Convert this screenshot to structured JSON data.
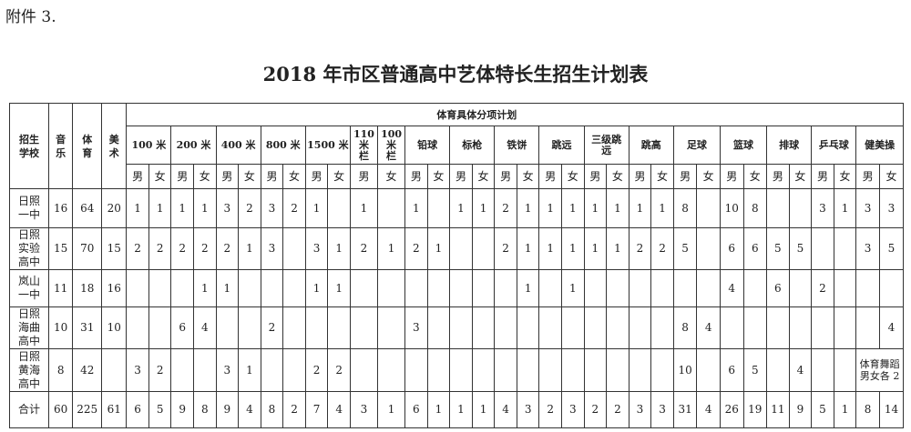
{
  "attachment": "附件 3.",
  "title": "2018 年市区普通高中艺体特长生招生计划表",
  "headers": {
    "school": "招生\n学校",
    "music": "音\n乐",
    "sports": "体\n育",
    "art": "美\n术",
    "group": "体育具体分项计划",
    "male": "男",
    "female": "女"
  },
  "events": [
    {
      "name": "100 米",
      "cols": 2
    },
    {
      "name": "200 米",
      "cols": 2
    },
    {
      "name": "400 米",
      "cols": 2
    },
    {
      "name": "800 米",
      "cols": 2
    },
    {
      "name": "1500 米",
      "cols": 2
    },
    {
      "name": "110\n米\n栏",
      "cols": 1,
      "sex": "男"
    },
    {
      "name": "100\n米\n栏",
      "cols": 1,
      "sex": "女"
    },
    {
      "name": "铅球",
      "cols": 2
    },
    {
      "name": "标枪",
      "cols": 2
    },
    {
      "name": "铁饼",
      "cols": 2
    },
    {
      "name": "跳远",
      "cols": 2
    },
    {
      "name": "三级跳\n远",
      "cols": 2
    },
    {
      "name": "跳高",
      "cols": 2
    },
    {
      "name": "足球",
      "cols": 2
    },
    {
      "name": "篮球",
      "cols": 2
    },
    {
      "name": "排球",
      "cols": 2
    },
    {
      "name": "乒乓球",
      "cols": 2
    },
    {
      "name": "健美操",
      "cols": 2
    }
  ],
  "rows": [
    {
      "school": "日照\n一中",
      "music": "16",
      "sports": "64",
      "art": "20",
      "cells": [
        "1",
        "1",
        "1",
        "1",
        "3",
        "2",
        "3",
        "2",
        "1",
        "",
        "1",
        "",
        "1",
        "",
        "1",
        "1",
        "2",
        "1",
        "1",
        "1",
        "1",
        "1",
        "1",
        "1",
        "8",
        "",
        "10",
        "8",
        "",
        "",
        "3",
        "1",
        "3",
        "3"
      ]
    },
    {
      "school": "日照\n实验\n高中",
      "music": "15",
      "sports": "70",
      "art": "15",
      "cells": [
        "2",
        "2",
        "2",
        "2",
        "2",
        "1",
        "3",
        "",
        "3",
        "1",
        "2",
        "1",
        "2",
        "1",
        "",
        "",
        "2",
        "1",
        "1",
        "1",
        "1",
        "1",
        "2",
        "2",
        "5",
        "",
        "6",
        "6",
        "5",
        "5",
        "",
        "",
        "3",
        "5"
      ]
    },
    {
      "school": "岚山\n一中",
      "music": "11",
      "sports": "18",
      "art": "16",
      "cells": [
        "",
        "",
        "",
        "1",
        "1",
        "",
        "",
        "",
        "1",
        "1",
        "",
        "",
        "",
        "",
        "",
        "",
        "",
        "1",
        "",
        "1",
        "",
        "",
        "",
        "",
        "",
        "",
        "4",
        "",
        "6",
        "",
        "2",
        "",
        "",
        ""
      ]
    },
    {
      "school": "日照\n海曲\n高中",
      "music": "10",
      "sports": "31",
      "art": "10",
      "cells": [
        "",
        "",
        "6",
        "4",
        "",
        "",
        "2",
        "",
        "",
        "",
        "",
        "",
        "3",
        "",
        "",
        "",
        "",
        "",
        "",
        "",
        "",
        "",
        "",
        "",
        "8",
        "4",
        "",
        "",
        "",
        "",
        "",
        "",
        "",
        "4"
      ]
    },
    {
      "school": "日照\n黄海\n高中",
      "music": "8",
      "sports": "42",
      "art": "",
      "cells": [
        "3",
        "2",
        "",
        "",
        "3",
        "1",
        "",
        "",
        "2",
        "2",
        "",
        "",
        "",
        "",
        "",
        "",
        "",
        "",
        "",
        "",
        "",
        "",
        "",
        "",
        "10",
        "",
        "6",
        "5",
        "",
        "4",
        "",
        "",
        ""
      ],
      "aerobics_merged": "体育舞蹈男女各 2"
    },
    {
      "school": "合计",
      "music": "60",
      "sports": "225",
      "art": "61",
      "cells": [
        "6",
        "5",
        "9",
        "8",
        "9",
        "4",
        "8",
        "2",
        "7",
        "4",
        "3",
        "1",
        "6",
        "1",
        "1",
        "1",
        "4",
        "3",
        "2",
        "3",
        "2",
        "2",
        "3",
        "3",
        "31",
        "4",
        "26",
        "19",
        "11",
        "9",
        "5",
        "1",
        "8",
        "14"
      ]
    }
  ]
}
